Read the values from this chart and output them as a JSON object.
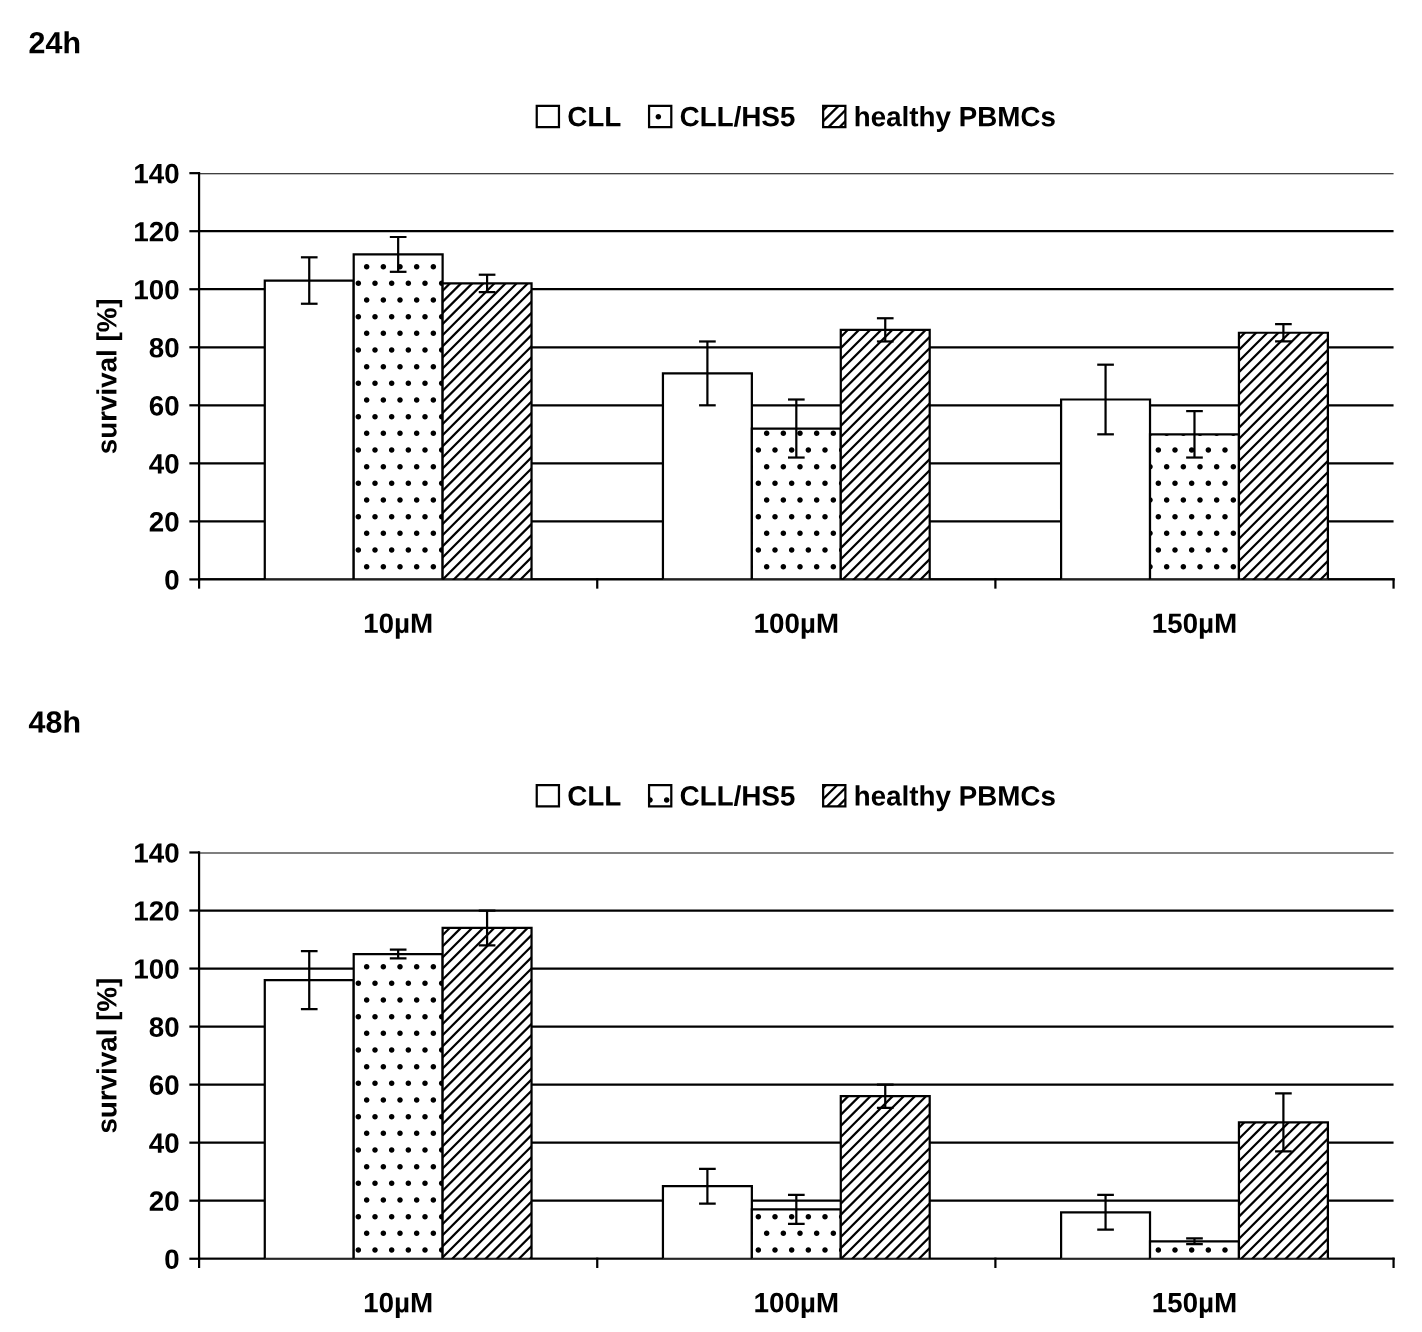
{
  "chart_data": [
    {
      "type": "bar",
      "title": "24h",
      "ylabel": "survival [%]",
      "categories": [
        "10µM",
        "100µM",
        "150µM"
      ],
      "ylim": [
        0,
        140
      ],
      "yticks": [
        0,
        20,
        40,
        60,
        80,
        100,
        120,
        140
      ],
      "grid": "y",
      "legend": "top",
      "series": [
        {
          "name": "CLL",
          "color": "#ffffff",
          "values": [
            103,
            71,
            62
          ],
          "errors": [
            8,
            11,
            12
          ]
        },
        {
          "name": "CLL/HS5",
          "color": "#000000",
          "values": [
            112,
            52,
            50
          ],
          "errors": [
            6,
            10,
            8
          ]
        },
        {
          "name": "healthy PBMCs",
          "color": "#000000",
          "values": [
            102,
            86,
            85
          ],
          "errors": [
            3,
            4,
            3
          ]
        }
      ]
    },
    {
      "type": "bar",
      "title": "48h",
      "ylabel": "survival [%]",
      "categories": [
        "10µM",
        "100µM",
        "150µM"
      ],
      "ylim": [
        0,
        140
      ],
      "yticks": [
        0,
        20,
        40,
        60,
        80,
        100,
        120,
        140
      ],
      "grid": "y",
      "legend": "top",
      "series": [
        {
          "name": "CLL",
          "color": "#ffffff",
          "values": [
            96,
            25,
            16
          ],
          "errors": [
            10,
            6,
            6
          ]
        },
        {
          "name": "CLL/HS5",
          "color": "#000000",
          "values": [
            105,
            17,
            6
          ],
          "errors": [
            1.5,
            5,
            1
          ]
        },
        {
          "name": "healthy PBMCs",
          "color": "#000000",
          "values": [
            114,
            56,
            47
          ],
          "errors": [
            6,
            4,
            10
          ]
        }
      ]
    }
  ]
}
